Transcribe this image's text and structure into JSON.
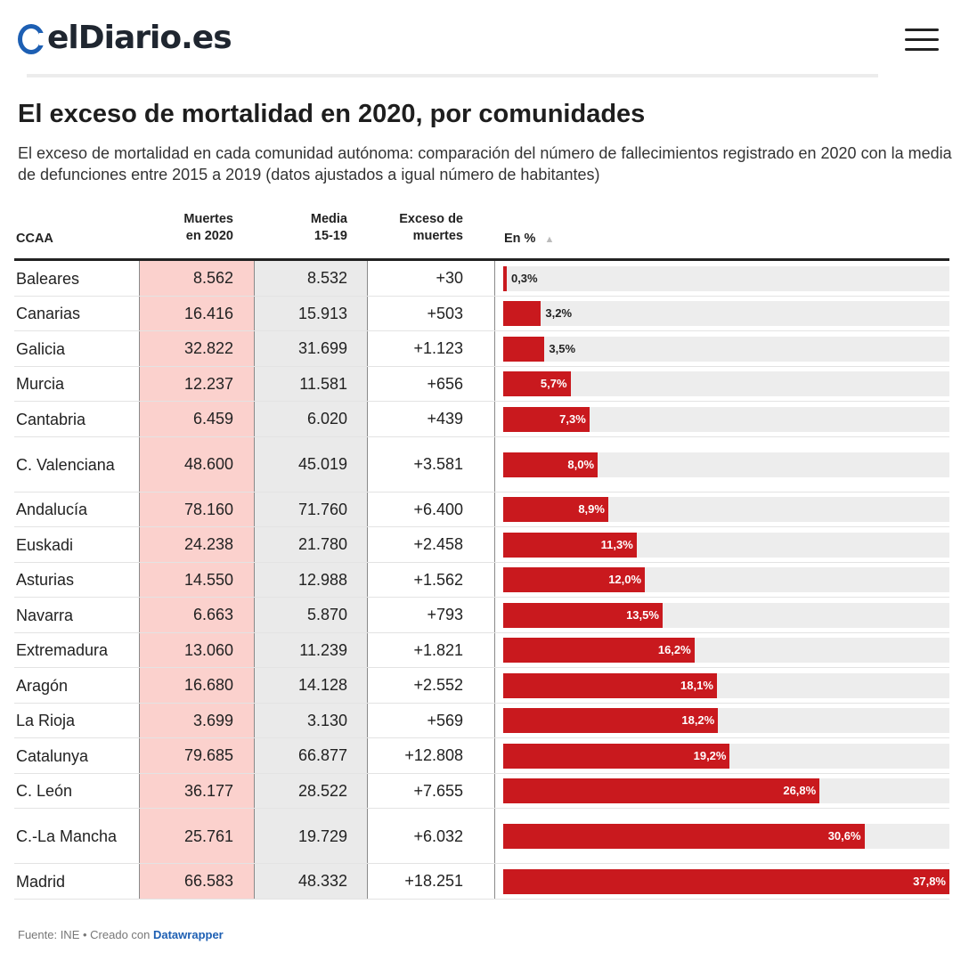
{
  "header": {
    "logo_text": "elDiario.es",
    "menu_icon": "hamburger-icon",
    "brand_color": "#1d5fb3"
  },
  "title": "El exceso de mortalidad en 2020, por comunidades",
  "subtitle": "El exceso de mortalidad en cada comunidad autónoma: comparación del número de fallecimientos registrado en 2020 con la media de defunciones entre 2015 a 2019 (datos ajustados a igual número de habitantes)",
  "footer": {
    "source": "Fuente: INE",
    "separator": " • ",
    "created": "Creado con ",
    "tool": "Datawrapper"
  },
  "colors": {
    "bar": "#c9191e",
    "muertes_col": "#fbd1cd",
    "media_col": "#eaeaea",
    "track": "#ededed"
  },
  "chart_data": {
    "type": "table",
    "columns": {
      "ccaa": "CCAA",
      "muertes": [
        "Muertes",
        "en 2020"
      ],
      "media": [
        "Media",
        "15-19"
      ],
      "exceso": [
        "Exceso de",
        "muertes"
      ],
      "pct": "En %"
    },
    "bar_scale_max": 37.8,
    "rows": [
      {
        "name": "Baleares",
        "muertes": "8.562",
        "media": "8.532",
        "exceso": "+30",
        "pct": 0.3,
        "pct_label": "0,3%"
      },
      {
        "name": "Canarias",
        "muertes": "16.416",
        "media": "15.913",
        "exceso": "+503",
        "pct": 3.2,
        "pct_label": "3,2%"
      },
      {
        "name": "Galicia",
        "muertes": "32.822",
        "media": "31.699",
        "exceso": "+1.123",
        "pct": 3.5,
        "pct_label": "3,5%"
      },
      {
        "name": "Murcia",
        "muertes": "12.237",
        "media": "11.581",
        "exceso": "+656",
        "pct": 5.7,
        "pct_label": "5,7%"
      },
      {
        "name": "Cantabria",
        "muertes": "6.459",
        "media": "6.020",
        "exceso": "+439",
        "pct": 7.3,
        "pct_label": "7,3%"
      },
      {
        "name": "C. Valenciana",
        "muertes": "48.600",
        "media": "45.019",
        "exceso": "+3.581",
        "pct": 8.0,
        "pct_label": "8,0%"
      },
      {
        "name": "Andalucía",
        "muertes": "78.160",
        "media": "71.760",
        "exceso": "+6.400",
        "pct": 8.9,
        "pct_label": "8,9%"
      },
      {
        "name": "Euskadi",
        "muertes": "24.238",
        "media": "21.780",
        "exceso": "+2.458",
        "pct": 11.3,
        "pct_label": "11,3%"
      },
      {
        "name": "Asturias",
        "muertes": "14.550",
        "media": "12.988",
        "exceso": "+1.562",
        "pct": 12.0,
        "pct_label": "12,0%"
      },
      {
        "name": "Navarra",
        "muertes": "6.663",
        "media": "5.870",
        "exceso": "+793",
        "pct": 13.5,
        "pct_label": "13,5%"
      },
      {
        "name": "Extremadura",
        "muertes": "13.060",
        "media": "11.239",
        "exceso": "+1.821",
        "pct": 16.2,
        "pct_label": "16,2%"
      },
      {
        "name": "Aragón",
        "muertes": "16.680",
        "media": "14.128",
        "exceso": "+2.552",
        "pct": 18.1,
        "pct_label": "18,1%"
      },
      {
        "name": "La Rioja",
        "muertes": "3.699",
        "media": "3.130",
        "exceso": "+569",
        "pct": 18.2,
        "pct_label": "18,2%"
      },
      {
        "name": "Catalunya",
        "muertes": "79.685",
        "media": "66.877",
        "exceso": "+12.808",
        "pct": 19.2,
        "pct_label": "19,2%"
      },
      {
        "name": "C. León",
        "muertes": "36.177",
        "media": "28.522",
        "exceso": "+7.655",
        "pct": 26.8,
        "pct_label": "26,8%"
      },
      {
        "name": "C.-La Mancha",
        "muertes": "25.761",
        "media": "19.729",
        "exceso": "+6.032",
        "pct": 30.6,
        "pct_label": "30,6%"
      },
      {
        "name": "Madrid",
        "muertes": "66.583",
        "media": "48.332",
        "exceso": "+18.251",
        "pct": 37.8,
        "pct_label": "37,8%"
      }
    ]
  }
}
